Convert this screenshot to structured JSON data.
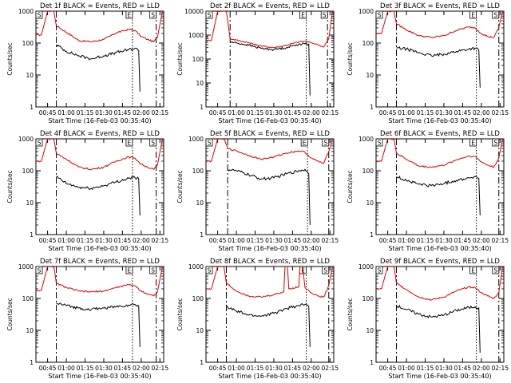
{
  "common": {
    "xlabel": "Start Time (16-Feb-03 00:35:40)",
    "ylabel": "Counts/sec",
    "x_tick_labels": [
      "00:45",
      "01:00",
      "01:15",
      "01:30",
      "01:45",
      "02:00",
      "02:15"
    ],
    "y_tick_labels": [
      "1",
      "10",
      "100",
      "1000"
    ],
    "marker_labels": [
      "S",
      "E",
      "S"
    ],
    "colors": {
      "events": "#000000",
      "lld": "#e00000",
      "axes": "#000000"
    }
  },
  "chart_data": [
    {
      "type": "line",
      "title": "Det 1f BLACK = Events, RED = LLD",
      "xlim": [
        "00:35:40",
        "02:18:00"
      ],
      "ylim": [
        1,
        1000
      ],
      "y_scale": "log",
      "x_tick_labels": [
        "00:45",
        "01:00",
        "01:15",
        "01:30",
        "01:45",
        "02:00",
        "02:15"
      ],
      "vlines": [
        {
          "x": "00:52:00",
          "style": "dash-dot"
        },
        {
          "x": "01:53:00",
          "style": "dotted"
        },
        {
          "x": "02:12:00",
          "style": "dash-dot"
        }
      ],
      "series": [
        {
          "key": "lld",
          "x": [
            "00:36",
            "00:40",
            "00:45",
            "00:50",
            "00:52",
            "01:00",
            "01:10",
            "01:20",
            "01:30",
            "01:40",
            "01:50",
            "01:55",
            "02:00",
            "02:05",
            "02:10",
            "02:13",
            "02:17"
          ],
          "values": [
            180,
            180,
            1000,
            1000,
            350,
            220,
            120,
            110,
            130,
            210,
            270,
            250,
            160,
            130,
            110,
            150,
            1000
          ]
        },
        {
          "key": "events",
          "x": [
            "00:52",
            "01:00",
            "01:10",
            "01:20",
            "01:30",
            "01:40",
            "01:50",
            "01:55",
            "01:58",
            "01:59"
          ],
          "values": [
            90,
            55,
            40,
            32,
            40,
            50,
            62,
            68,
            60,
            3
          ]
        }
      ]
    },
    {
      "type": "line",
      "title": "Det 2f BLACK = Events, RED = LLD",
      "xlim": [
        "00:35:40",
        "02:18:00"
      ],
      "ylim": [
        1,
        10000
      ],
      "y_scale": "log",
      "x_tick_labels": [
        "00:45",
        "01:00",
        "01:15",
        "01:30",
        "01:45",
        "02:00",
        "02:15"
      ],
      "vlines": [
        {
          "x": "00:55:00",
          "style": "dash-dot"
        },
        {
          "x": "01:56:00",
          "style": "dotted"
        },
        {
          "x": "02:13:00",
          "style": "dash-dot"
        }
      ],
      "series": [
        {
          "key": "lld",
          "x": [
            "00:36",
            "00:40",
            "00:45",
            "00:52",
            "00:55",
            "01:00",
            "01:10",
            "01:20",
            "01:30",
            "01:40",
            "01:50",
            "01:55",
            "02:00",
            "02:05",
            "02:10",
            "02:14",
            "02:17"
          ],
          "values": [
            600,
            600,
            10000,
            10000,
            700,
            620,
            480,
            350,
            300,
            380,
            520,
            560,
            480,
            400,
            320,
            700,
            10000
          ]
        },
        {
          "key": "events",
          "x": [
            "00:55",
            "01:00",
            "01:10",
            "01:20",
            "01:30",
            "01:40",
            "01:50",
            "01:55",
            "01:58",
            "01:59"
          ],
          "values": [
            520,
            470,
            380,
            280,
            250,
            300,
            420,
            430,
            420,
            3
          ]
        }
      ]
    },
    {
      "type": "line",
      "title": "Det 3f BLACK = Events, RED = LLD",
      "xlim": [
        "00:35:40",
        "02:18:00"
      ],
      "ylim": [
        1,
        1000
      ],
      "y_scale": "log",
      "x_tick_labels": [
        "00:45",
        "01:00",
        "01:15",
        "01:30",
        "01:45",
        "02:00",
        "02:15"
      ],
      "vlines": [
        {
          "x": "00:52:00",
          "style": "dash-dot"
        },
        {
          "x": "01:56:00",
          "style": "dotted"
        },
        {
          "x": "02:14:00",
          "style": "dash-dot"
        }
      ],
      "series": [
        {
          "key": "lld",
          "x": [
            "00:36",
            "00:40",
            "00:45",
            "00:50",
            "00:52",
            "01:00",
            "01:10",
            "01:20",
            "01:30",
            "01:40",
            "01:50",
            "01:55",
            "02:00",
            "02:05",
            "02:10",
            "02:14",
            "02:17"
          ],
          "values": [
            200,
            200,
            1000,
            1000,
            400,
            260,
            170,
            150,
            170,
            250,
            320,
            300,
            200,
            160,
            150,
            300,
            1000
          ]
        },
        {
          "key": "events",
          "x": [
            "00:52",
            "01:00",
            "01:10",
            "01:20",
            "01:30",
            "01:40",
            "01:50",
            "01:55",
            "01:58",
            "01:59"
          ],
          "values": [
            70,
            65,
            50,
            40,
            45,
            55,
            65,
            70,
            60,
            4
          ]
        }
      ]
    },
    {
      "type": "line",
      "title": "Det 4f BLACK = Events, RED = LLD",
      "xlim": [
        "00:35:40",
        "02:18:00"
      ],
      "ylim": [
        1,
        1000
      ],
      "y_scale": "log",
      "x_tick_labels": [
        "00:45",
        "01:00",
        "01:15",
        "01:30",
        "01:45",
        "02:00",
        "02:15"
      ],
      "vlines": [
        {
          "x": "00:52:00",
          "style": "dash-dot"
        },
        {
          "x": "01:53:00",
          "style": "dotted"
        },
        {
          "x": "02:12:00",
          "style": "dash-dot"
        }
      ],
      "series": [
        {
          "key": "lld",
          "x": [
            "00:36",
            "00:40",
            "00:45",
            "00:50",
            "00:52",
            "01:00",
            "01:10",
            "01:20",
            "01:30",
            "01:40",
            "01:50",
            "01:55",
            "02:00",
            "02:05",
            "02:10",
            "02:13",
            "02:17"
          ],
          "values": [
            200,
            200,
            1000,
            1000,
            350,
            230,
            130,
            110,
            130,
            200,
            270,
            250,
            160,
            130,
            110,
            150,
            1000
          ]
        },
        {
          "key": "events",
          "x": [
            "00:52",
            "01:00",
            "01:10",
            "01:20",
            "01:30",
            "01:40",
            "01:50",
            "01:55",
            "01:58",
            "01:59"
          ],
          "values": [
            65,
            40,
            30,
            28,
            34,
            45,
            58,
            62,
            55,
            4
          ]
        }
      ]
    },
    {
      "type": "line",
      "title": "Det 5f BLACK = Events, RED = LLD",
      "xlim": [
        "00:35:40",
        "02:18:00"
      ],
      "ylim": [
        1,
        1000
      ],
      "y_scale": "log",
      "x_tick_labels": [
        "00:45",
        "01:00",
        "01:15",
        "01:30",
        "01:45",
        "02:00",
        "02:15"
      ],
      "vlines": [
        {
          "x": "00:53:00",
          "style": "dash-dot"
        },
        {
          "x": "01:57:00",
          "style": "dotted"
        },
        {
          "x": "02:14:00",
          "style": "dash-dot"
        }
      ],
      "series": [
        {
          "key": "lld",
          "x": [
            "00:36",
            "00:40",
            "00:45",
            "00:50",
            "00:53",
            "01:00",
            "01:10",
            "01:20",
            "01:30",
            "01:40",
            "01:50",
            "01:55",
            "02:00",
            "02:05",
            "02:10",
            "02:14",
            "02:17"
          ],
          "values": [
            200,
            200,
            1000,
            1000,
            500,
            420,
            300,
            230,
            270,
            360,
            420,
            380,
            250,
            200,
            170,
            400,
            1000
          ]
        },
        {
          "key": "events",
          "x": [
            "00:53",
            "01:00",
            "01:10",
            "01:20",
            "01:30",
            "01:40",
            "01:50",
            "01:55",
            "01:58",
            "01:59"
          ],
          "values": [
            110,
            100,
            75,
            55,
            60,
            80,
            100,
            110,
            80,
            2
          ]
        }
      ]
    },
    {
      "type": "line",
      "title": "Det 6f BLACK = Events, RED = LLD",
      "xlim": [
        "00:35:40",
        "02:18:00"
      ],
      "ylim": [
        1,
        1000
      ],
      "y_scale": "log",
      "x_tick_labels": [
        "00:45",
        "01:00",
        "01:15",
        "01:30",
        "01:45",
        "02:00",
        "02:15"
      ],
      "vlines": [
        {
          "x": "00:52:00",
          "style": "dash-dot"
        },
        {
          "x": "01:56:00",
          "style": "dotted"
        },
        {
          "x": "02:14:00",
          "style": "dash-dot"
        }
      ],
      "series": [
        {
          "key": "lld",
          "x": [
            "00:36",
            "00:40",
            "00:45",
            "00:50",
            "00:52",
            "01:00",
            "01:10",
            "01:20",
            "01:30",
            "01:40",
            "01:50",
            "01:55",
            "02:00",
            "02:05",
            "02:10",
            "02:14",
            "02:17"
          ],
          "values": [
            200,
            200,
            1000,
            1000,
            350,
            230,
            140,
            130,
            150,
            220,
            290,
            280,
            190,
            150,
            130,
            250,
            1000
          ]
        },
        {
          "key": "events",
          "x": [
            "00:52",
            "01:00",
            "01:10",
            "01:20",
            "01:30",
            "01:40",
            "01:50",
            "01:55",
            "01:58",
            "01:59"
          ],
          "values": [
            65,
            50,
            38,
            34,
            40,
            50,
            60,
            65,
            58,
            4
          ]
        }
      ]
    },
    {
      "type": "line",
      "title": "Det 7f BLACK = Events, RED = LLD",
      "xlim": [
        "00:35:40",
        "02:18:00"
      ],
      "ylim": [
        1,
        1000
      ],
      "y_scale": "log",
      "x_tick_labels": [
        "00:45",
        "01:00",
        "01:15",
        "01:30",
        "01:45",
        "02:00",
        "02:15"
      ],
      "vlines": [
        {
          "x": "00:52:00",
          "style": "dash-dot"
        },
        {
          "x": "01:53:00",
          "style": "dotted"
        },
        {
          "x": "02:12:00",
          "style": "dash-dot"
        }
      ],
      "series": [
        {
          "key": "lld",
          "x": [
            "00:36",
            "00:40",
            "00:45",
            "00:50",
            "00:52",
            "01:00",
            "01:10",
            "01:20",
            "01:30",
            "01:40",
            "01:50",
            "01:55",
            "02:00",
            "02:05",
            "02:10",
            "02:13",
            "02:17"
          ],
          "values": [
            180,
            180,
            1000,
            1000,
            300,
            220,
            170,
            160,
            170,
            220,
            270,
            250,
            170,
            140,
            120,
            160,
            1000
          ]
        },
        {
          "key": "events",
          "x": [
            "00:52",
            "01:00",
            "01:10",
            "01:20",
            "01:30",
            "01:40",
            "01:50",
            "01:55",
            "01:58",
            "01:59"
          ],
          "values": [
            70,
            60,
            50,
            45,
            50,
            55,
            62,
            65,
            58,
            3
          ]
        }
      ]
    },
    {
      "type": "line",
      "title": "Det 8f BLACK = Events, RED = LLD",
      "xlim": [
        "00:35:40",
        "02:18:00"
      ],
      "ylim": [
        1,
        1000
      ],
      "y_scale": "log",
      "x_tick_labels": [
        "00:45",
        "01:00",
        "01:15",
        "01:30",
        "01:45",
        "02:00",
        "02:15"
      ],
      "vlines": [
        {
          "x": "00:52:00",
          "style": "dash-dot"
        },
        {
          "x": "01:56:00",
          "style": "dotted"
        },
        {
          "x": "02:14:00",
          "style": "dash-dot"
        }
      ],
      "series": [
        {
          "key": "lld",
          "x": [
            "00:36",
            "00:40",
            "00:45",
            "00:50",
            "00:52",
            "01:00",
            "01:10",
            "01:20",
            "01:30",
            "01:38",
            "01:39",
            "01:41",
            "01:42",
            "01:50",
            "01:51",
            "01:53",
            "01:55",
            "02:00",
            "02:05",
            "02:10",
            "02:14",
            "02:17"
          ],
          "values": [
            200,
            200,
            1000,
            1000,
            300,
            170,
            120,
            110,
            130,
            160,
            1000,
            1000,
            200,
            230,
            1000,
            1000,
            220,
            150,
            120,
            110,
            250,
            1000
          ]
        },
        {
          "key": "events",
          "x": [
            "00:52",
            "01:00",
            "01:10",
            "01:20",
            "01:30",
            "01:40",
            "01:50",
            "01:55",
            "01:58",
            "01:59"
          ],
          "values": [
            55,
            40,
            30,
            28,
            34,
            48,
            60,
            65,
            55,
            3
          ]
        }
      ]
    },
    {
      "type": "line",
      "title": "Det 9f BLACK = Events, RED = LLD",
      "xlim": [
        "00:35:40",
        "02:18:00"
      ],
      "ylim": [
        1,
        1000
      ],
      "y_scale": "log",
      "x_tick_labels": [
        "00:45",
        "01:00",
        "01:15",
        "01:30",
        "01:45",
        "02:00",
        "02:15"
      ],
      "vlines": [
        {
          "x": "00:52:00",
          "style": "dash-dot"
        },
        {
          "x": "01:56:00",
          "style": "dotted"
        },
        {
          "x": "02:14:00",
          "style": "dash-dot"
        }
      ],
      "series": [
        {
          "key": "lld",
          "x": [
            "00:36",
            "00:40",
            "00:45",
            "00:50",
            "00:52",
            "01:00",
            "01:10",
            "01:20",
            "01:30",
            "01:40",
            "01:50",
            "01:55",
            "02:00",
            "02:05",
            "02:10",
            "02:14",
            "02:17"
          ],
          "values": [
            200,
            200,
            1000,
            1000,
            300,
            190,
            110,
            90,
            110,
            170,
            230,
            220,
            150,
            120,
            100,
            150,
            1000
          ]
        },
        {
          "key": "events",
          "x": [
            "00:52",
            "01:00",
            "01:10",
            "01:20",
            "01:30",
            "01:40",
            "01:50",
            "01:55",
            "01:58",
            "01:59"
          ],
          "values": [
            60,
            45,
            32,
            26,
            30,
            42,
            52,
            55,
            50,
            2
          ]
        }
      ]
    }
  ]
}
